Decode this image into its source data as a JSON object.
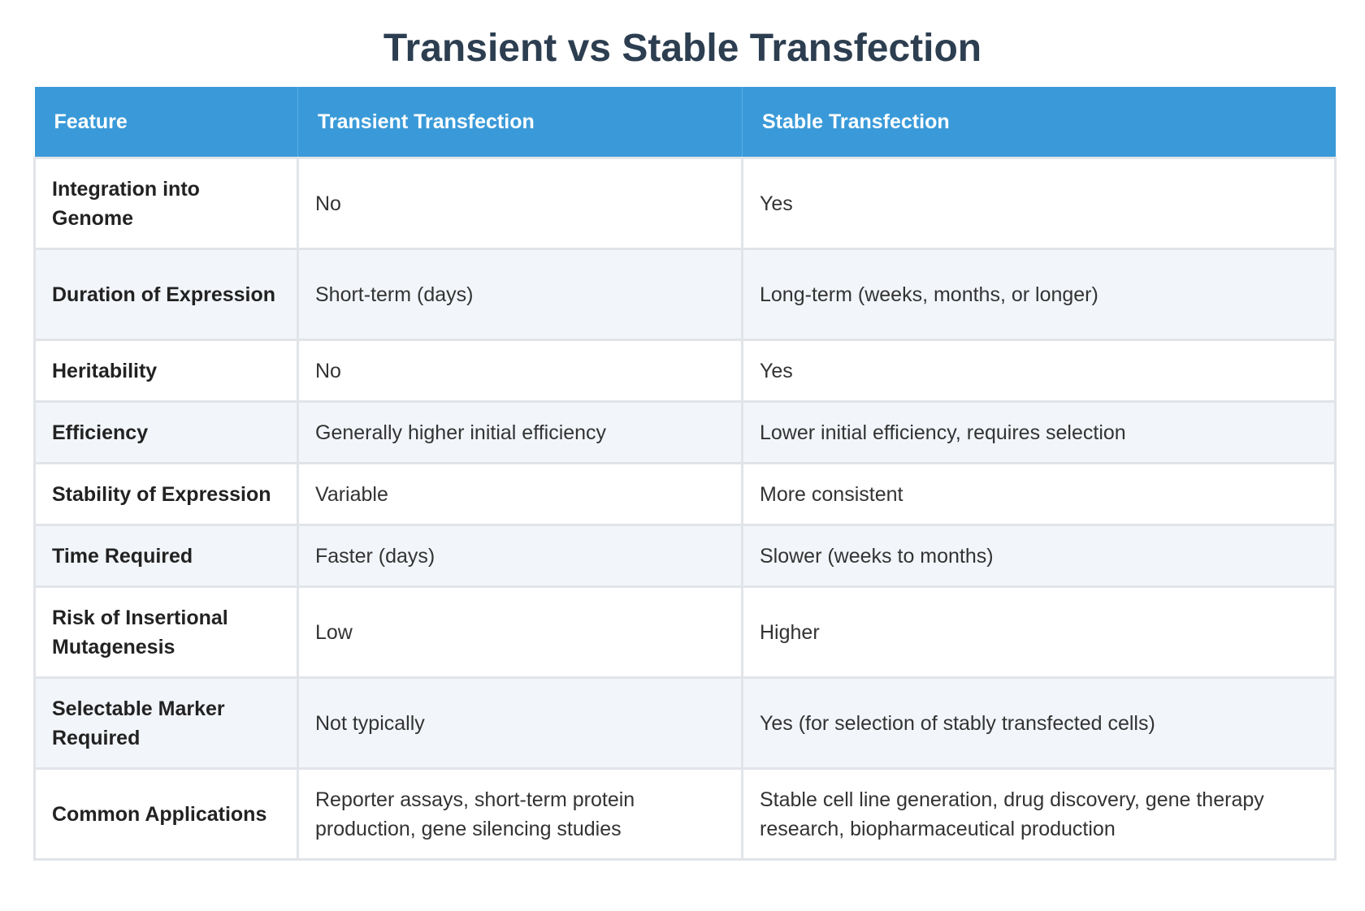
{
  "title": "Transient vs Stable Transfection",
  "table": {
    "headers": [
      "Feature",
      "Transient Transfection",
      "Stable Transfection"
    ],
    "rows": [
      {
        "feature": "Integration into Genome",
        "transient": "No",
        "stable": "Yes"
      },
      {
        "feature": "Duration of Expression",
        "transient": "Short-term (days)",
        "stable": "Long-term (weeks, months, or longer)"
      },
      {
        "feature": "Heritability",
        "transient": "No",
        "stable": "Yes"
      },
      {
        "feature": "Efficiency",
        "transient": "Generally higher initial efficiency",
        "stable": "Lower initial efficiency, requires selection"
      },
      {
        "feature": "Stability of Expression",
        "transient": "Variable",
        "stable": "More consistent"
      },
      {
        "feature": "Time Required",
        "transient": "Faster (days)",
        "stable": "Slower (weeks to months)"
      },
      {
        "feature": "Risk of Insertional Mutagenesis",
        "transient": "Low",
        "stable": "Higher"
      },
      {
        "feature": "Selectable Marker Required",
        "transient": "Not typically",
        "stable": "Yes (for selection of stably transfected cells)"
      },
      {
        "feature": "Common Applications",
        "transient": "Reporter assays, short-term protein production, gene silencing studies",
        "stable": "Stable cell line generation, drug discovery, gene therapy research, biopharmaceutical production"
      }
    ]
  },
  "colors": {
    "header_bg": "#3a9ad9",
    "title": "#2c3e50",
    "row_alt": "#f2f5fa",
    "border": "#e1e4e8"
  }
}
